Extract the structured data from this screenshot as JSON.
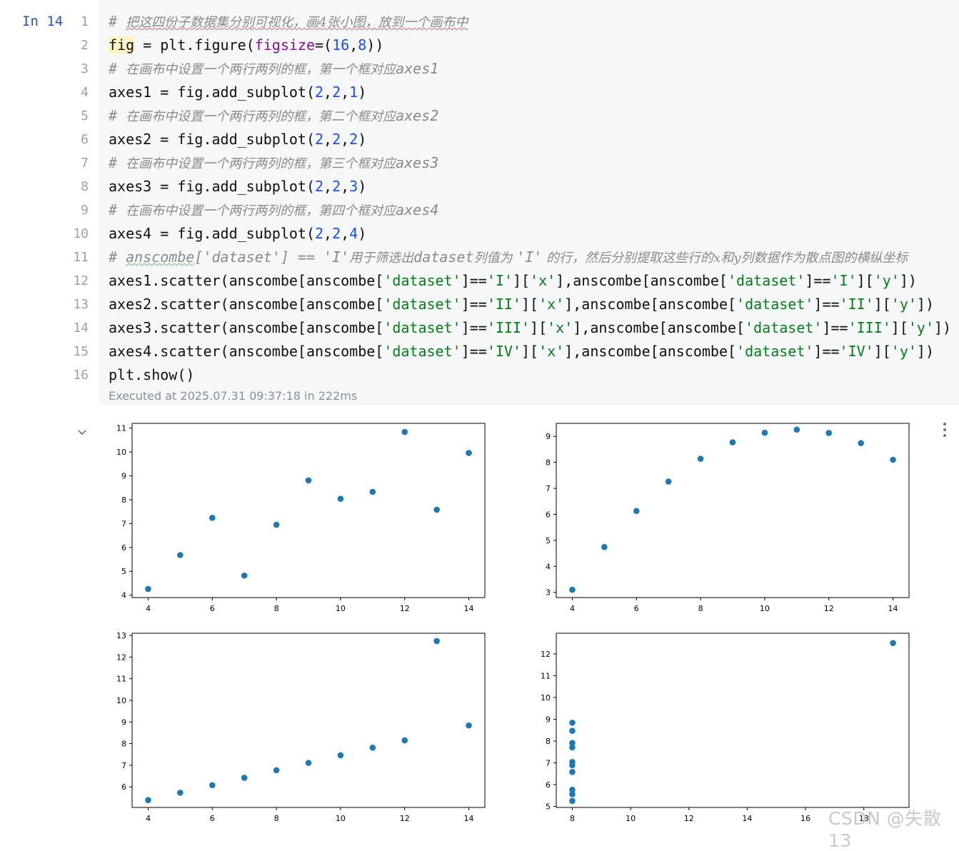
{
  "cell": {
    "prompt": "In 14",
    "line_numbers": [
      "1",
      "2",
      "3",
      "4",
      "5",
      "6",
      "7",
      "8",
      "9",
      "10",
      "11",
      "12",
      "13",
      "14",
      "15",
      "16"
    ],
    "code": [
      [
        {
          "t": "# ",
          "c": "cmt"
        },
        {
          "t": "把这四份子数据集分别可视化，画4张小图，放到一个画布中",
          "c": "cmt-cjk squig"
        }
      ],
      [
        {
          "t": "fig",
          "c": "hl"
        },
        {
          "t": " = plt.figure(",
          "c": ""
        },
        {
          "t": "figsize",
          "c": "kw"
        },
        {
          "t": "=(",
          "c": ""
        },
        {
          "t": "16",
          "c": "num"
        },
        {
          "t": ",",
          "c": ""
        },
        {
          "t": "8",
          "c": "num"
        },
        {
          "t": "))",
          "c": ""
        }
      ],
      [
        {
          "t": "# ",
          "c": "cmt"
        },
        {
          "t": "在画布中设置一个两行两列的框，第一个框对应",
          "c": "cmt-cjk"
        },
        {
          "t": "axes1",
          "c": "cmt"
        }
      ],
      [
        {
          "t": "axes1 = fig.add_subplot(",
          "c": ""
        },
        {
          "t": "2",
          "c": "num"
        },
        {
          "t": ",",
          "c": ""
        },
        {
          "t": "2",
          "c": "num"
        },
        {
          "t": ",",
          "c": ""
        },
        {
          "t": "1",
          "c": "num"
        },
        {
          "t": ")",
          "c": ""
        }
      ],
      [
        {
          "t": "# ",
          "c": "cmt"
        },
        {
          "t": "在画布中设置一个两行两列的框，第二个框对应",
          "c": "cmt-cjk"
        },
        {
          "t": "axes2",
          "c": "cmt"
        }
      ],
      [
        {
          "t": "axes2 = fig.add_subplot(",
          "c": ""
        },
        {
          "t": "2",
          "c": "num"
        },
        {
          "t": ",",
          "c": ""
        },
        {
          "t": "2",
          "c": "num"
        },
        {
          "t": ",",
          "c": ""
        },
        {
          "t": "2",
          "c": "num"
        },
        {
          "t": ")",
          "c": ""
        }
      ],
      [
        {
          "t": "# ",
          "c": "cmt"
        },
        {
          "t": "在画布中设置一个两行两列的框，第三个框对应",
          "c": "cmt-cjk"
        },
        {
          "t": "axes3",
          "c": "cmt"
        }
      ],
      [
        {
          "t": "axes3 = fig.add_subplot(",
          "c": ""
        },
        {
          "t": "2",
          "c": "num"
        },
        {
          "t": ",",
          "c": ""
        },
        {
          "t": "2",
          "c": "num"
        },
        {
          "t": ",",
          "c": ""
        },
        {
          "t": "3",
          "c": "num"
        },
        {
          "t": ")",
          "c": ""
        }
      ],
      [
        {
          "t": "# ",
          "c": "cmt"
        },
        {
          "t": "在画布中设置一个两行两列的框，第四个框对应",
          "c": "cmt-cjk"
        },
        {
          "t": "axes4",
          "c": "cmt"
        }
      ],
      [
        {
          "t": "axes4 = fig.add_subplot(",
          "c": ""
        },
        {
          "t": "2",
          "c": "num"
        },
        {
          "t": ",",
          "c": ""
        },
        {
          "t": "2",
          "c": "num"
        },
        {
          "t": ",",
          "c": ""
        },
        {
          "t": "4",
          "c": "num"
        },
        {
          "t": ")",
          "c": ""
        }
      ],
      [
        {
          "t": "# ",
          "c": "cmt"
        },
        {
          "t": "anscombe",
          "c": "cmt squig-g"
        },
        {
          "t": "['dataset'] == 'I'",
          "c": "cmt"
        },
        {
          "t": "用于筛选出",
          "c": "cmt-cjk"
        },
        {
          "t": "dataset",
          "c": "cmt"
        },
        {
          "t": "列值为 ",
          "c": "cmt-cjk"
        },
        {
          "t": "'I'",
          "c": "cmt"
        },
        {
          "t": " 的行，然后分别提取这些行的x和y列数据作为散点图的横纵坐标",
          "c": "cmt-cjk"
        }
      ],
      [
        {
          "t": "axes1.scatter(anscombe[anscombe[",
          "c": ""
        },
        {
          "t": "'dataset'",
          "c": "str"
        },
        {
          "t": "]==",
          "c": ""
        },
        {
          "t": "'I'",
          "c": "str"
        },
        {
          "t": "][",
          "c": ""
        },
        {
          "t": "'x'",
          "c": "str"
        },
        {
          "t": "],anscombe[anscombe[",
          "c": ""
        },
        {
          "t": "'dataset'",
          "c": "str"
        },
        {
          "t": "]==",
          "c": ""
        },
        {
          "t": "'I'",
          "c": "str"
        },
        {
          "t": "][",
          "c": ""
        },
        {
          "t": "'y'",
          "c": "str"
        },
        {
          "t": "])",
          "c": ""
        }
      ],
      [
        {
          "t": "axes2.scatter(anscombe[anscombe[",
          "c": ""
        },
        {
          "t": "'dataset'",
          "c": "str"
        },
        {
          "t": "]==",
          "c": ""
        },
        {
          "t": "'II'",
          "c": "str"
        },
        {
          "t": "][",
          "c": ""
        },
        {
          "t": "'x'",
          "c": "str"
        },
        {
          "t": "],anscombe[anscombe[",
          "c": ""
        },
        {
          "t": "'dataset'",
          "c": "str"
        },
        {
          "t": "]==",
          "c": ""
        },
        {
          "t": "'II'",
          "c": "str"
        },
        {
          "t": "][",
          "c": ""
        },
        {
          "t": "'y'",
          "c": "str"
        },
        {
          "t": "])",
          "c": ""
        }
      ],
      [
        {
          "t": "axes3.scatter(anscombe[anscombe[",
          "c": ""
        },
        {
          "t": "'dataset'",
          "c": "str"
        },
        {
          "t": "]==",
          "c": ""
        },
        {
          "t": "'III'",
          "c": "str"
        },
        {
          "t": "][",
          "c": ""
        },
        {
          "t": "'x'",
          "c": "str"
        },
        {
          "t": "],anscombe[anscombe[",
          "c": ""
        },
        {
          "t": "'dataset'",
          "c": "str"
        },
        {
          "t": "]==",
          "c": ""
        },
        {
          "t": "'III'",
          "c": "str"
        },
        {
          "t": "][",
          "c": ""
        },
        {
          "t": "'y'",
          "c": "str"
        },
        {
          "t": "])",
          "c": ""
        }
      ],
      [
        {
          "t": "axes4.scatter(anscombe[anscombe[",
          "c": ""
        },
        {
          "t": "'dataset'",
          "c": "str"
        },
        {
          "t": "]==",
          "c": ""
        },
        {
          "t": "'IV'",
          "c": "str"
        },
        {
          "t": "][",
          "c": ""
        },
        {
          "t": "'x'",
          "c": "str"
        },
        {
          "t": "],anscombe[anscombe[",
          "c": ""
        },
        {
          "t": "'dataset'",
          "c": "str"
        },
        {
          "t": "]==",
          "c": ""
        },
        {
          "t": "'IV'",
          "c": "str"
        },
        {
          "t": "][",
          "c": ""
        },
        {
          "t": "'y'",
          "c": "str"
        },
        {
          "t": "])",
          "c": ""
        }
      ],
      [
        {
          "t": "plt.show()",
          "c": ""
        }
      ]
    ],
    "execution_info": "Executed at 2025.07.31 09:37:18 in 222ms"
  },
  "output": {
    "collapse_icon": "chevron-down-icon",
    "more_icon": "more-vertical-icon"
  },
  "watermark": "CSDN @失散13",
  "colors": {
    "marker": "#1f77b4",
    "code_bg": "#f6f7f9",
    "prompt": "#2a53b5"
  },
  "chart_data": [
    {
      "type": "scatter",
      "title": "",
      "xlabel": "",
      "ylabel": "",
      "xlim": [
        3.5,
        14.5
      ],
      "ylim": [
        3.9,
        11.2
      ],
      "xticks": [
        4,
        6,
        8,
        10,
        12,
        14
      ],
      "yticks": [
        4,
        5,
        6,
        7,
        8,
        9,
        10,
        11
      ],
      "x": [
        10,
        8,
        13,
        9,
        11,
        14,
        6,
        4,
        12,
        7,
        5
      ],
      "y": [
        8.04,
        6.95,
        7.58,
        8.81,
        8.33,
        9.96,
        7.24,
        4.26,
        10.84,
        4.82,
        5.68
      ]
    },
    {
      "type": "scatter",
      "title": "",
      "xlabel": "",
      "ylabel": "",
      "xlim": [
        3.5,
        14.5
      ],
      "ylim": [
        2.8,
        9.5
      ],
      "xticks": [
        4,
        6,
        8,
        10,
        12,
        14
      ],
      "yticks": [
        3,
        4,
        5,
        6,
        7,
        8,
        9
      ],
      "x": [
        10,
        8,
        13,
        9,
        11,
        14,
        6,
        4,
        12,
        7,
        5
      ],
      "y": [
        9.14,
        8.14,
        8.74,
        8.77,
        9.26,
        8.1,
        6.13,
        3.1,
        9.13,
        7.26,
        4.74
      ]
    },
    {
      "type": "scatter",
      "title": "",
      "xlabel": "",
      "ylabel": "",
      "xlim": [
        3.5,
        14.5
      ],
      "ylim": [
        5.05,
        13.1
      ],
      "xticks": [
        4,
        6,
        8,
        10,
        12,
        14
      ],
      "yticks": [
        6,
        7,
        8,
        9,
        10,
        11,
        12,
        13
      ],
      "x": [
        10,
        8,
        13,
        9,
        11,
        14,
        6,
        4,
        12,
        7,
        5
      ],
      "y": [
        7.46,
        6.77,
        12.74,
        7.11,
        7.81,
        8.84,
        6.08,
        5.39,
        8.15,
        6.42,
        5.73
      ]
    },
    {
      "type": "scatter",
      "title": "",
      "xlabel": "",
      "ylabel": "",
      "xlim": [
        7.45,
        19.55
      ],
      "ylim": [
        4.95,
        12.95
      ],
      "xticks": [
        8,
        10,
        12,
        14,
        16,
        18
      ],
      "yticks": [
        5,
        6,
        7,
        8,
        9,
        10,
        11,
        12
      ],
      "x": [
        8,
        8,
        8,
        8,
        8,
        8,
        8,
        19,
        8,
        8,
        8
      ],
      "y": [
        6.58,
        5.76,
        7.71,
        8.84,
        8.47,
        7.04,
        5.25,
        12.5,
        5.56,
        7.91,
        6.89
      ]
    }
  ]
}
